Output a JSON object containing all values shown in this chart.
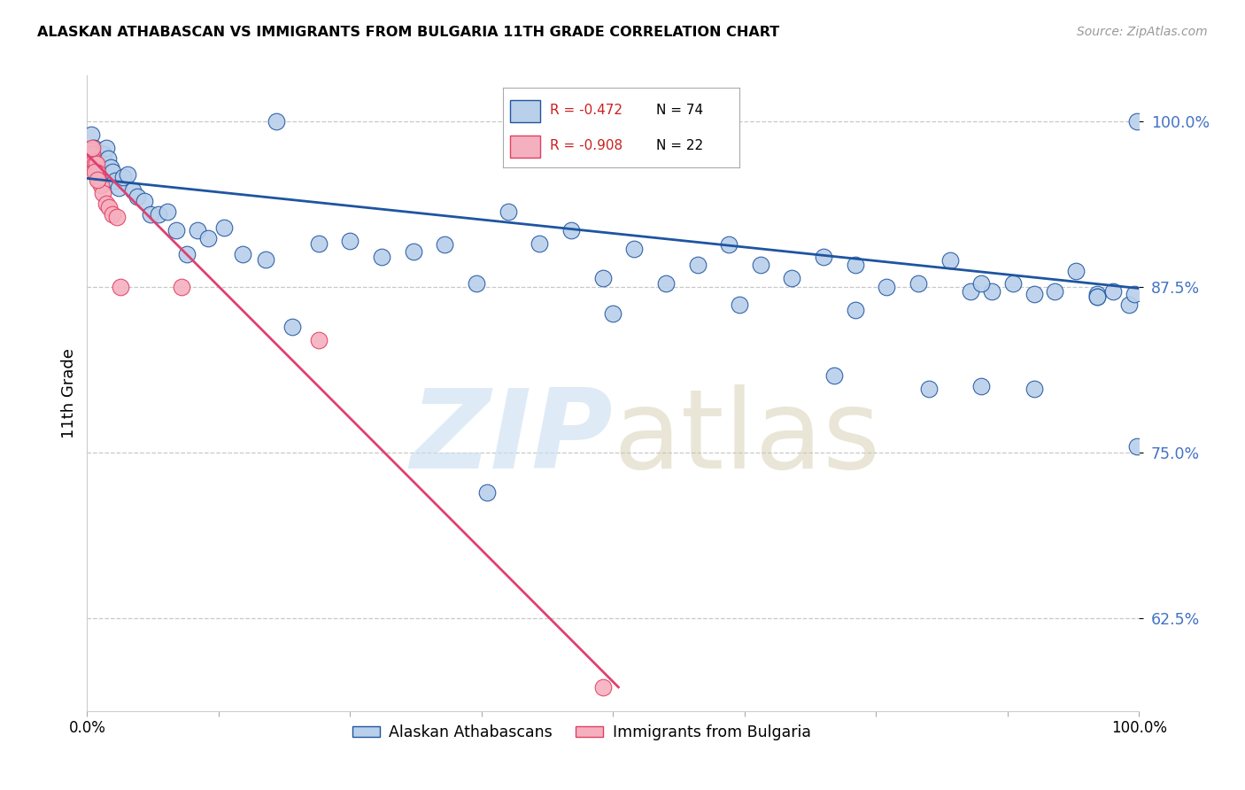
{
  "title": "ALASKAN ATHABASCAN VS IMMIGRANTS FROM BULGARIA 11TH GRADE CORRELATION CHART",
  "source": "Source: ZipAtlas.com",
  "ylabel": "11th Grade",
  "ytick_values": [
    0.625,
    0.75,
    0.875,
    1.0
  ],
  "ytick_labels": [
    "62.5%",
    "75.0%",
    "87.5%",
    "100.0%"
  ],
  "xlim": [
    0.0,
    1.0
  ],
  "ylim": [
    0.555,
    1.035
  ],
  "blue_R": -0.472,
  "blue_N": 74,
  "pink_R": -0.908,
  "pink_N": 22,
  "blue_fill": "#b8d0ea",
  "blue_edge": "#2255a0",
  "pink_fill": "#f5b0c0",
  "pink_edge": "#e04060",
  "blue_line_color": "#1e55a0",
  "pink_line_color": "#e04070",
  "blue_line_x": [
    0.0,
    1.0
  ],
  "blue_line_y": [
    0.957,
    0.874
  ],
  "pink_line_x": [
    0.0,
    0.505
  ],
  "pink_line_y": [
    0.975,
    0.573
  ],
  "blue_x": [
    0.004,
    0.006,
    0.008,
    0.01,
    0.012,
    0.014,
    0.016,
    0.018,
    0.02,
    0.022,
    0.024,
    0.027,
    0.03,
    0.034,
    0.038,
    0.043,
    0.048,
    0.054,
    0.06,
    0.068,
    0.076,
    0.085,
    0.095,
    0.105,
    0.115,
    0.13,
    0.148,
    0.17,
    0.195,
    0.22,
    0.25,
    0.28,
    0.31,
    0.34,
    0.37,
    0.4,
    0.43,
    0.46,
    0.49,
    0.52,
    0.55,
    0.58,
    0.61,
    0.64,
    0.67,
    0.7,
    0.73,
    0.76,
    0.79,
    0.82,
    0.84,
    0.86,
    0.88,
    0.9,
    0.92,
    0.94,
    0.96,
    0.975,
    0.99,
    0.998,
    0.998,
    0.18,
    0.38,
    0.5,
    0.62,
    0.71,
    0.8,
    0.85,
    0.9,
    0.96,
    0.73,
    0.85,
    0.96,
    0.995
  ],
  "blue_y": [
    0.99,
    0.98,
    0.975,
    0.97,
    0.968,
    0.975,
    0.975,
    0.98,
    0.972,
    0.965,
    0.962,
    0.955,
    0.95,
    0.958,
    0.96,
    0.948,
    0.943,
    0.94,
    0.93,
    0.93,
    0.932,
    0.918,
    0.9,
    0.918,
    0.912,
    0.92,
    0.9,
    0.896,
    0.845,
    0.908,
    0.91,
    0.898,
    0.902,
    0.907,
    0.878,
    0.932,
    0.908,
    0.918,
    0.882,
    0.904,
    0.878,
    0.892,
    0.907,
    0.892,
    0.882,
    0.898,
    0.892,
    0.875,
    0.878,
    0.895,
    0.872,
    0.872,
    0.878,
    0.87,
    0.872,
    0.887,
    0.87,
    0.872,
    0.862,
    0.755,
    1.0,
    1.0,
    0.72,
    0.855,
    0.862,
    0.808,
    0.798,
    0.8,
    0.798,
    0.868,
    0.858,
    0.878,
    0.868,
    0.87
  ],
  "pink_x": [
    0.002,
    0.004,
    0.005,
    0.006,
    0.007,
    0.008,
    0.009,
    0.01,
    0.011,
    0.013,
    0.015,
    0.018,
    0.021,
    0.024,
    0.028,
    0.032,
    0.09,
    0.22,
    0.49,
    0.007,
    0.01,
    0.005
  ],
  "pink_y": [
    0.972,
    0.978,
    0.975,
    0.97,
    0.968,
    0.964,
    0.968,
    0.961,
    0.956,
    0.952,
    0.946,
    0.938,
    0.935,
    0.93,
    0.928,
    0.875,
    0.875,
    0.835,
    0.573,
    0.962,
    0.956,
    0.98
  ]
}
